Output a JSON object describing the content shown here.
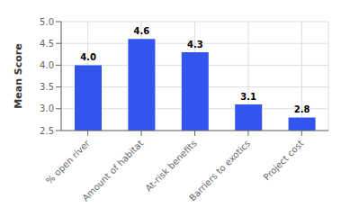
{
  "chart_data": {
    "type": "bar",
    "ylabel": "Mean Score",
    "categories": [
      "% open river",
      "Amount of habitat",
      "At-risk benefits",
      "Barriers to exotics",
      "Project cost"
    ],
    "values": [
      4.0,
      4.6,
      4.3,
      3.1,
      2.8
    ],
    "value_labels": [
      "4.0",
      "4.6",
      "4.3",
      "3.1",
      "2.8"
    ],
    "data_labels": true,
    "color": "#3355EE",
    "ylim": [
      2.5,
      5.0
    ],
    "yticks": [
      2.5,
      {
        "value": 3,
        "label": "3.0"
      },
      3.5,
      {
        "value": 4,
        "label": "4.0"
      },
      4.5,
      {
        "value": 5,
        "label": "5.0"
      }
    ],
    "grid": true
  }
}
